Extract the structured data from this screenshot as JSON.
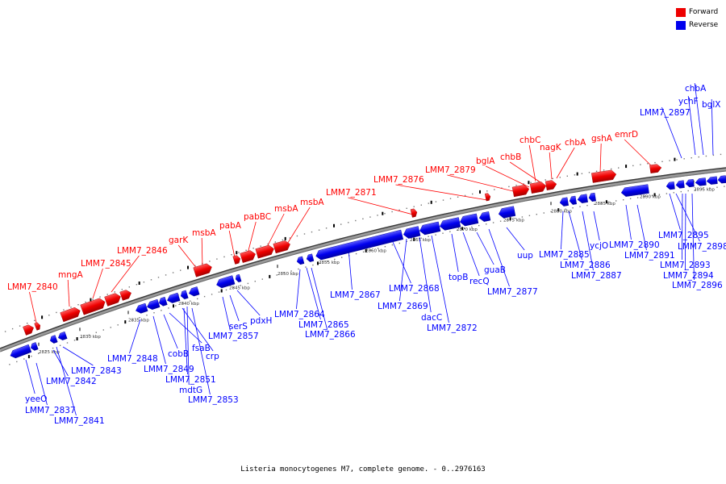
{
  "legend": {
    "forward_label": "Forward",
    "reverse_label": "Reverse",
    "forward_color": "#ff0000",
    "reverse_color": "#0000ff"
  },
  "caption": "Listeria monocytogenes M7, complete genome. - 0..2976163",
  "scale_labels": [
    "2825 kbp",
    "2830 kbp",
    "2835 kbp",
    "2840 kbp",
    "2845 kbp",
    "2850 kbp",
    "2855 kbp",
    "2860 kbp",
    "2865 kbp",
    "2870 kbp",
    "2875 kbp",
    "2880 kbp",
    "2885 kbp",
    "2890 kbp",
    "2895 kbp"
  ],
  "forward_genes": [
    "LMM7_2840",
    "mngA",
    "LMM7_2845",
    "LMM7_2846",
    "garK",
    "msbA",
    "pabA",
    "pabBC",
    "msbA",
    "msbA",
    "LMM7_2871",
    "LMM7_2876",
    "LMM7_2879",
    "bglA",
    "chbB",
    "chbC",
    "nagK",
    "chbA",
    "gshA",
    "emrD"
  ],
  "reverse_genes": [
    "yeeO",
    "LMM7_2837",
    "LMM7_2841",
    "LMM7_2842",
    "LMM7_2843",
    "LMM7_2848",
    "LMM7_2849",
    "cobB",
    "fsaB",
    "crp",
    "mdtG",
    "LMM7_2851",
    "LMM7_2853",
    "LMM7_2857",
    "serS",
    "pdxH",
    "LMM7_2864",
    "LMM7_2865",
    "LMM7_2866",
    "LMM7_2867",
    "LMM7_2868",
    "LMM7_2869",
    "dacC",
    "LMM7_2872",
    "topB",
    "recQ",
    "guaB",
    "LMM7_2877",
    "uup",
    "LMM7_2885",
    "LMM7_2886",
    "LMM7_2887",
    "ycjO",
    "LMM7_2890",
    "LMM7_2891",
    "LMM7_2895",
    "LMM7_2898",
    "LMM7_2893",
    "LMM7_2894",
    "LMM7_2896",
    "LMM7_2897",
    "ychF",
    "chbA",
    "bglX"
  ]
}
